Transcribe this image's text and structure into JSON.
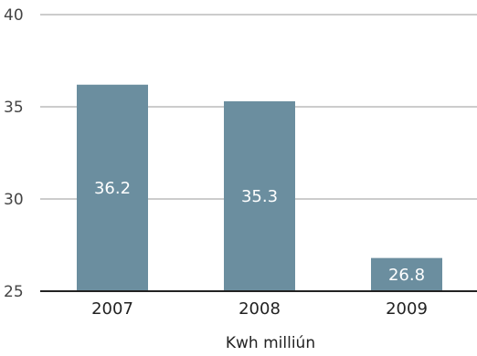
{
  "chart_data": {
    "type": "bar",
    "categories": [
      "2007",
      "2008",
      "2009"
    ],
    "values": [
      36.2,
      35.3,
      26.8
    ],
    "data_labels": [
      "36.2",
      "35.3",
      "26.8"
    ],
    "title": "",
    "xlabel": "Kwh milliún",
    "ylabel": "",
    "ylim": [
      25,
      40
    ],
    "yticks": [
      25,
      30,
      35,
      40
    ],
    "grid": true,
    "legend": "none"
  },
  "colors": {
    "bar": "#6b8e9f",
    "grid": "#999999",
    "baseline": "#222222"
  }
}
